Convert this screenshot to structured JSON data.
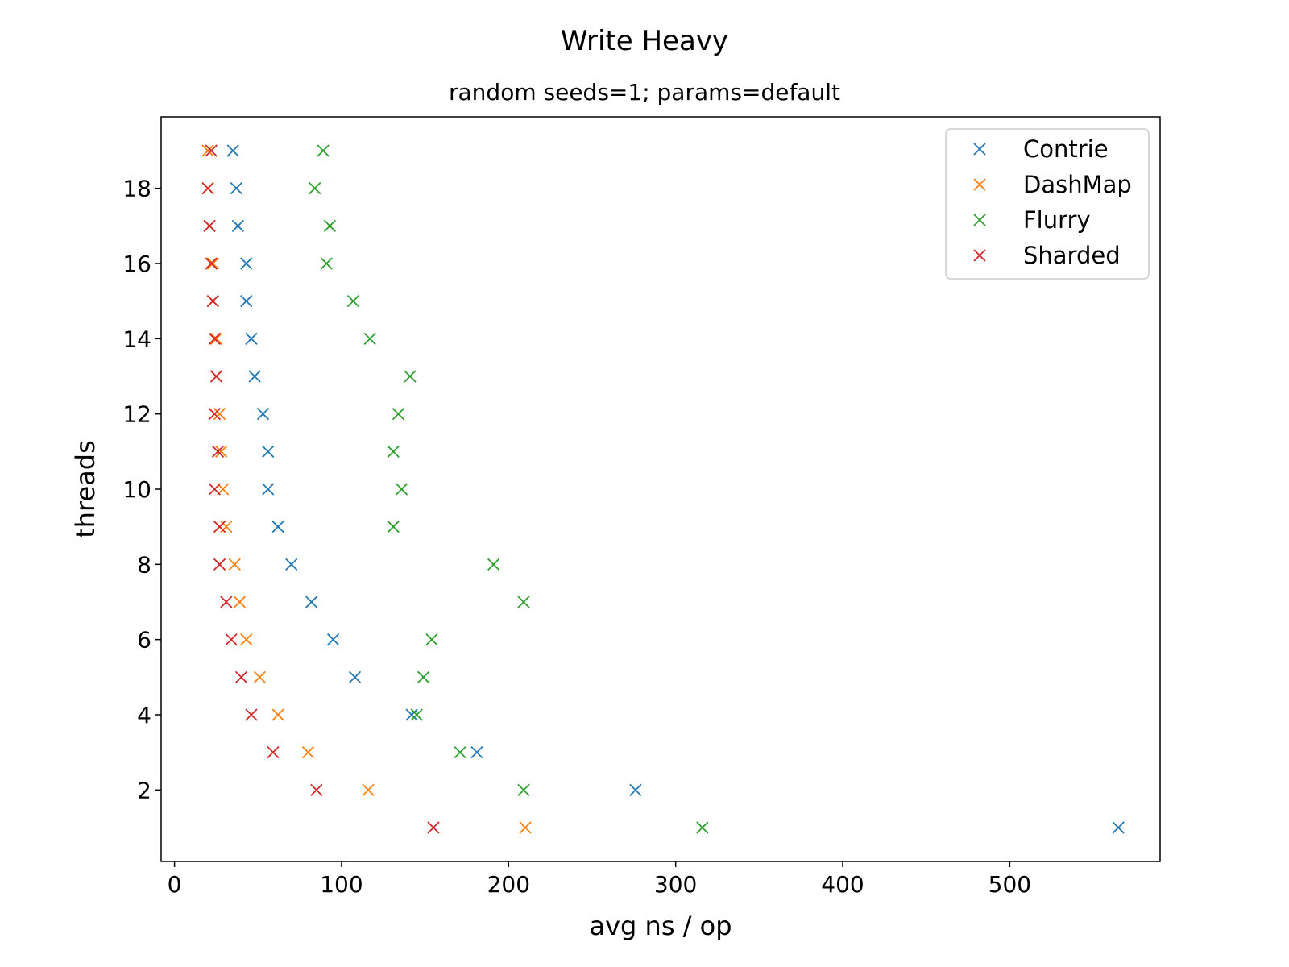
{
  "chart_data": {
    "type": "scatter",
    "title": "Write Heavy",
    "subtitle": "random seeds=1; params=default",
    "xlabel": "avg ns / op",
    "ylabel": "threads",
    "xlim": [
      -8,
      590
    ],
    "ylim": [
      0.1,
      19.9
    ],
    "xticks": [
      0,
      100,
      200,
      300,
      400,
      500
    ],
    "yticks": [
      2,
      4,
      6,
      8,
      10,
      12,
      14,
      16,
      18
    ],
    "grid": false,
    "legend_position": "top-right",
    "marker": "x",
    "series": [
      {
        "name": "Contrie",
        "color": "#1f77b4",
        "points": [
          [
            565,
            1
          ],
          [
            276,
            2
          ],
          [
            181,
            3
          ],
          [
            142,
            4
          ],
          [
            108,
            5
          ],
          [
            95,
            6
          ],
          [
            82,
            7
          ],
          [
            70,
            8
          ],
          [
            62,
            9
          ],
          [
            56,
            10
          ],
          [
            56,
            11
          ],
          [
            53,
            12
          ],
          [
            48,
            13
          ],
          [
            46,
            14
          ],
          [
            43,
            15
          ],
          [
            43,
            16
          ],
          [
            38,
            17
          ],
          [
            37,
            18
          ],
          [
            35,
            19
          ]
        ]
      },
      {
        "name": "DashMap",
        "color": "#ff7f0e",
        "points": [
          [
            210,
            1
          ],
          [
            116,
            2
          ],
          [
            80,
            3
          ],
          [
            62,
            4
          ],
          [
            51,
            5
          ],
          [
            43,
            6
          ],
          [
            39,
            7
          ],
          [
            36,
            8
          ],
          [
            31,
            9
          ],
          [
            29,
            10
          ],
          [
            28,
            11
          ],
          [
            27,
            12
          ],
          [
            25,
            13
          ],
          [
            25,
            14
          ],
          [
            23,
            15
          ],
          [
            23,
            16
          ],
          [
            21,
            17
          ],
          [
            20,
            18
          ],
          [
            20,
            19
          ]
        ]
      },
      {
        "name": "Flurry",
        "color": "#2ca02c",
        "points": [
          [
            316,
            1
          ],
          [
            209,
            2
          ],
          [
            171,
            3
          ],
          [
            145,
            4
          ],
          [
            149,
            5
          ],
          [
            154,
            6
          ],
          [
            209,
            7
          ],
          [
            191,
            8
          ],
          [
            131,
            9
          ],
          [
            136,
            10
          ],
          [
            131,
            11
          ],
          [
            134,
            12
          ],
          [
            141,
            13
          ],
          [
            117,
            14
          ],
          [
            107,
            15
          ],
          [
            91,
            16
          ],
          [
            93,
            17
          ],
          [
            84,
            18
          ],
          [
            89,
            19
          ]
        ]
      },
      {
        "name": "Sharded",
        "color": "#d62728",
        "points": [
          [
            155,
            1
          ],
          [
            85,
            2
          ],
          [
            59,
            3
          ],
          [
            46,
            4
          ],
          [
            40,
            5
          ],
          [
            34,
            6
          ],
          [
            31,
            7
          ],
          [
            27,
            8
          ],
          [
            27,
            9
          ],
          [
            24,
            10
          ],
          [
            26,
            11
          ],
          [
            24,
            12
          ],
          [
            25,
            13
          ],
          [
            24,
            14
          ],
          [
            23,
            15
          ],
          [
            22,
            16
          ],
          [
            21,
            17
          ],
          [
            20,
            18
          ],
          [
            22,
            19
          ]
        ]
      }
    ]
  }
}
